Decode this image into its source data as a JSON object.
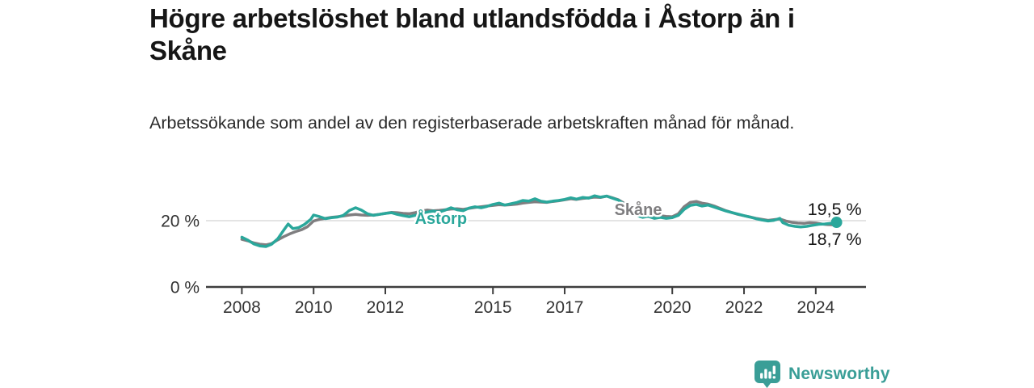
{
  "header": {
    "title": "Högre arbetslöshet bland utlandsfödda i Åstorp än i Skåne",
    "subtitle": "Arbetssökande som andel av den registerbaserade arbetskraften månad för månad."
  },
  "footer": {
    "brand_name": "Newsworthy",
    "brand_color": "#3a9e97",
    "logo_icon": "bar-chart-speech-bubble-icon"
  },
  "colors": {
    "accent_teal": "#2aa79b",
    "line_gray": "#7f7e80",
    "grid": "#dcdcdc",
    "axis": "#3e3e3e",
    "text_dark": "#161616"
  },
  "chart_data": {
    "type": "line",
    "title": "Högre arbetslöshet bland utlandsfödda i Åstorp än i Skåne",
    "subtitle": "Arbetssökande som andel av den registerbaserade arbetskraften månad för månad.",
    "unit": "%",
    "legend": "inline-labels",
    "grid": "horizontal-gridline-at-20-only",
    "x_axis": {
      "range": [
        2007.0,
        2025.4
      ],
      "ticks": [
        2008,
        2010,
        2012,
        2015,
        2017,
        2020,
        2022,
        2024
      ]
    },
    "y_axis": {
      "range": [
        0,
        30.24
      ],
      "ticks": [
        {
          "value": 0,
          "label": "0 %",
          "gridline": false
        },
        {
          "value": 20,
          "label": "20 %",
          "gridline": true
        }
      ]
    },
    "series": [
      {
        "name": "Skåne",
        "color": "#7f7e80",
        "label": {
          "text": "Skåne",
          "x": 2019.05,
          "y": 21.7
        },
        "end_label": {
          "text": "18,7 %",
          "x": 2025.28,
          "y": 12.7
        },
        "end_dot": false,
        "points": [
          [
            2008.0,
            14.4
          ],
          [
            2008.17,
            13.9
          ],
          [
            2008.33,
            13.3
          ],
          [
            2008.5,
            12.9
          ],
          [
            2008.67,
            12.7
          ],
          [
            2008.83,
            13.1
          ],
          [
            2009.0,
            14.2
          ],
          [
            2009.17,
            15.2
          ],
          [
            2009.33,
            16.0
          ],
          [
            2009.5,
            16.7
          ],
          [
            2009.67,
            17.3
          ],
          [
            2009.83,
            18.2
          ],
          [
            2010.0,
            19.9
          ],
          [
            2010.17,
            20.4
          ],
          [
            2010.33,
            20.7
          ],
          [
            2010.5,
            21.0
          ],
          [
            2010.67,
            21.2
          ],
          [
            2010.83,
            21.4
          ],
          [
            2011.0,
            21.7
          ],
          [
            2011.17,
            21.9
          ],
          [
            2011.33,
            21.7
          ],
          [
            2011.5,
            21.6
          ],
          [
            2011.67,
            21.7
          ],
          [
            2011.83,
            21.9
          ],
          [
            2012.0,
            22.2
          ],
          [
            2012.17,
            22.5
          ],
          [
            2012.33,
            22.4
          ],
          [
            2012.5,
            22.2
          ],
          [
            2012.67,
            22.1
          ],
          [
            2012.83,
            22.4
          ],
          [
            2013.0,
            22.9
          ],
          [
            2013.17,
            23.2
          ],
          [
            2013.33,
            23.0
          ],
          [
            2013.5,
            23.1
          ],
          [
            2013.67,
            23.3
          ],
          [
            2013.83,
            23.5
          ],
          [
            2014.0,
            23.6
          ],
          [
            2014.17,
            23.4
          ],
          [
            2014.33,
            23.7
          ],
          [
            2014.5,
            24.0
          ],
          [
            2014.67,
            24.2
          ],
          [
            2014.83,
            24.4
          ],
          [
            2015.0,
            24.6
          ],
          [
            2015.17,
            24.8
          ],
          [
            2015.33,
            24.7
          ],
          [
            2015.5,
            24.8
          ],
          [
            2015.67,
            25.0
          ],
          [
            2015.83,
            25.3
          ],
          [
            2016.0,
            25.5
          ],
          [
            2016.17,
            25.7
          ],
          [
            2016.33,
            25.6
          ],
          [
            2016.5,
            25.5
          ],
          [
            2016.67,
            25.8
          ],
          [
            2016.83,
            26.0
          ],
          [
            2017.0,
            26.3
          ],
          [
            2017.17,
            26.6
          ],
          [
            2017.33,
            26.4
          ],
          [
            2017.5,
            26.7
          ],
          [
            2017.67,
            26.9
          ],
          [
            2017.83,
            27.1
          ],
          [
            2018.0,
            27.0
          ],
          [
            2018.17,
            27.4
          ],
          [
            2018.33,
            26.9
          ],
          [
            2018.5,
            26.3
          ],
          [
            2018.67,
            25.2
          ],
          [
            2018.83,
            23.8
          ],
          [
            2019.0,
            22.6
          ],
          [
            2019.17,
            22.0
          ],
          [
            2019.33,
            21.8
          ],
          [
            2019.5,
            21.6
          ],
          [
            2019.67,
            21.5
          ],
          [
            2019.83,
            21.3
          ],
          [
            2020.0,
            21.2
          ],
          [
            2020.17,
            22.1
          ],
          [
            2020.33,
            24.2
          ],
          [
            2020.5,
            25.5
          ],
          [
            2020.67,
            25.8
          ],
          [
            2020.83,
            25.3
          ],
          [
            2021.0,
            25.0
          ],
          [
            2021.17,
            24.4
          ],
          [
            2021.33,
            23.7
          ],
          [
            2021.5,
            23.0
          ],
          [
            2021.67,
            22.4
          ],
          [
            2021.83,
            21.9
          ],
          [
            2022.0,
            21.5
          ],
          [
            2022.17,
            21.1
          ],
          [
            2022.33,
            20.7
          ],
          [
            2022.5,
            20.4
          ],
          [
            2022.67,
            20.1
          ],
          [
            2022.83,
            20.3
          ],
          [
            2023.0,
            20.5
          ],
          [
            2023.17,
            19.9
          ],
          [
            2023.33,
            19.5
          ],
          [
            2023.5,
            19.3
          ],
          [
            2023.67,
            19.2
          ],
          [
            2023.83,
            19.4
          ],
          [
            2024.0,
            19.3
          ],
          [
            2024.17,
            19.0
          ],
          [
            2024.33,
            18.8
          ],
          [
            2024.58,
            18.7
          ]
        ]
      },
      {
        "name": "Åstorp",
        "color": "#2aa79b",
        "label": {
          "text": "Åstorp",
          "x": 2013.55,
          "y": 19.0
        },
        "end_label": {
          "text": "19,5 %",
          "x": 2025.28,
          "y": 21.7
        },
        "end_dot": true,
        "points": [
          [
            2008.0,
            15.0
          ],
          [
            2008.17,
            14.1
          ],
          [
            2008.33,
            13.0
          ],
          [
            2008.5,
            12.4
          ],
          [
            2008.67,
            12.2
          ],
          [
            2008.83,
            12.9
          ],
          [
            2009.0,
            14.5
          ],
          [
            2009.17,
            17.2
          ],
          [
            2009.29,
            19.0
          ],
          [
            2009.42,
            17.6
          ],
          [
            2009.58,
            17.9
          ],
          [
            2009.75,
            18.9
          ],
          [
            2009.92,
            20.4
          ],
          [
            2010.0,
            21.7
          ],
          [
            2010.17,
            21.2
          ],
          [
            2010.33,
            20.6
          ],
          [
            2010.5,
            20.9
          ],
          [
            2010.67,
            21.1
          ],
          [
            2010.83,
            21.6
          ],
          [
            2011.0,
            23.1
          ],
          [
            2011.17,
            23.9
          ],
          [
            2011.33,
            23.2
          ],
          [
            2011.5,
            22.1
          ],
          [
            2011.67,
            21.6
          ],
          [
            2011.83,
            21.9
          ],
          [
            2012.0,
            22.2
          ],
          [
            2012.17,
            22.4
          ],
          [
            2012.33,
            21.9
          ],
          [
            2012.5,
            21.5
          ],
          [
            2012.67,
            21.2
          ],
          [
            2012.83,
            21.6
          ],
          [
            2013.0,
            22.2
          ],
          [
            2013.17,
            22.6
          ],
          [
            2013.33,
            22.9
          ],
          [
            2013.5,
            22.6
          ],
          [
            2013.67,
            23.2
          ],
          [
            2013.83,
            23.9
          ],
          [
            2014.0,
            23.3
          ],
          [
            2014.17,
            23.0
          ],
          [
            2014.33,
            23.8
          ],
          [
            2014.5,
            24.2
          ],
          [
            2014.67,
            23.9
          ],
          [
            2014.83,
            24.3
          ],
          [
            2015.0,
            24.9
          ],
          [
            2015.17,
            25.3
          ],
          [
            2015.33,
            24.7
          ],
          [
            2015.5,
            25.1
          ],
          [
            2015.67,
            25.5
          ],
          [
            2015.83,
            26.1
          ],
          [
            2016.0,
            25.9
          ],
          [
            2016.17,
            26.6
          ],
          [
            2016.33,
            25.9
          ],
          [
            2016.5,
            25.6
          ],
          [
            2016.67,
            25.9
          ],
          [
            2016.83,
            26.1
          ],
          [
            2017.0,
            26.4
          ],
          [
            2017.17,
            26.9
          ],
          [
            2017.33,
            26.5
          ],
          [
            2017.5,
            27.0
          ],
          [
            2017.67,
            26.8
          ],
          [
            2017.83,
            27.5
          ],
          [
            2018.0,
            27.1
          ],
          [
            2018.17,
            27.4
          ],
          [
            2018.33,
            26.8
          ],
          [
            2018.5,
            26.2
          ],
          [
            2018.67,
            24.8
          ],
          [
            2018.83,
            23.0
          ],
          [
            2019.0,
            21.6
          ],
          [
            2019.17,
            21.0
          ],
          [
            2019.33,
            21.3
          ],
          [
            2019.5,
            20.7
          ],
          [
            2019.67,
            21.0
          ],
          [
            2019.83,
            20.7
          ],
          [
            2020.0,
            20.9
          ],
          [
            2020.17,
            21.6
          ],
          [
            2020.33,
            23.4
          ],
          [
            2020.5,
            24.6
          ],
          [
            2020.67,
            24.9
          ],
          [
            2020.83,
            24.4
          ],
          [
            2021.0,
            24.7
          ],
          [
            2021.17,
            24.1
          ],
          [
            2021.33,
            23.5
          ],
          [
            2021.5,
            22.9
          ],
          [
            2021.67,
            22.4
          ],
          [
            2021.83,
            22.0
          ],
          [
            2022.0,
            21.5
          ],
          [
            2022.17,
            21.1
          ],
          [
            2022.33,
            20.6
          ],
          [
            2022.5,
            20.2
          ],
          [
            2022.67,
            19.9
          ],
          [
            2022.83,
            20.1
          ],
          [
            2023.0,
            20.7
          ],
          [
            2023.08,
            19.4
          ],
          [
            2023.25,
            18.6
          ],
          [
            2023.42,
            18.3
          ],
          [
            2023.58,
            18.1
          ],
          [
            2023.75,
            18.3
          ],
          [
            2023.92,
            18.6
          ],
          [
            2024.08,
            18.9
          ],
          [
            2024.25,
            19.0
          ],
          [
            2024.42,
            19.2
          ],
          [
            2024.58,
            19.5
          ]
        ]
      }
    ]
  }
}
